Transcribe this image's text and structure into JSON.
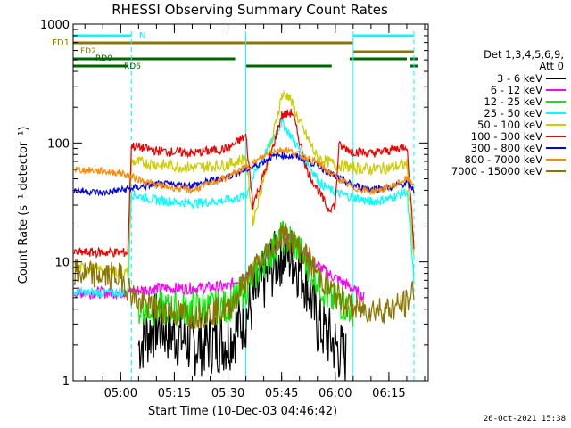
{
  "title": "RHESSI Observing Summary Count Rates",
  "xlabel": "Start Time (10-Dec-03 04:46:42)",
  "ylabel": "Count Rate (s⁻¹ detector⁻¹)",
  "timestamp": "26-Oct-2021 15:38",
  "legend": {
    "header_line1": "Det 1,3,4,5,6,9,",
    "header_line2": "Att 0",
    "entries": [
      {
        "label": "3 - 6 keV",
        "color": "#000000"
      },
      {
        "label": "6 - 12 keV",
        "color": "#ff00ff"
      },
      {
        "label": "12 - 25 keV",
        "color": "#00ee00"
      },
      {
        "label": "25 - 50 keV",
        "color": "#00ffff"
      },
      {
        "label": "50 - 100 keV",
        "color": "#cccc00"
      },
      {
        "label": "100 - 300 keV",
        "color": "#ee0000"
      },
      {
        "label": "300 - 800 keV",
        "color": "#0000ee"
      },
      {
        "label": "800 - 7000 keV",
        "color": "#ff8800"
      },
      {
        "label": "7000 - 15000 keV",
        "color": "#8b7500"
      }
    ]
  },
  "flags": {
    "N": {
      "label": "N",
      "color": "#00ffff"
    },
    "FD1": {
      "label": "FD1",
      "color": "#8b7500"
    },
    "FD2": {
      "label": "FD2",
      "color": "#8b7500"
    },
    "RD0": {
      "label": "RD0",
      "color": "#006400"
    },
    "RD6": {
      "label": "RD6",
      "color": "#006400"
    }
  },
  "chart_data": {
    "type": "line",
    "title": "RHESSI Observing Summary Count Rates",
    "xlabel": "Start Time (10-Dec-03 04:46:42)",
    "ylabel": "Count Rate (s⁻¹ detector⁻¹)",
    "yscale": "log",
    "ylim": [
      1,
      1000
    ],
    "xlim": [
      "04:46:42",
      "06:26:00"
    ],
    "yticks": [
      {
        "value": 1,
        "label": "1"
      },
      {
        "value": 10,
        "label": "10"
      },
      {
        "value": 100,
        "label": "100"
      },
      {
        "value": 1000,
        "label": "1000"
      }
    ],
    "xticks": [
      {
        "time": "05:00",
        "label": "05:00"
      },
      {
        "time": "05:15",
        "label": "05:15"
      },
      {
        "time": "05:30",
        "label": "05:30"
      },
      {
        "time": "05:45",
        "label": "05:45"
      },
      {
        "time": "06:00",
        "label": "06:00"
      },
      {
        "time": "06:15",
        "label": "06:15"
      }
    ],
    "night_boundaries": [
      "05:03",
      "06:22"
    ],
    "saa_boundaries": [
      "05:35",
      "06:05"
    ],
    "flag_intervals": {
      "N": [
        [
          "04:46:42",
          "05:03"
        ],
        [
          "06:05",
          "06:22"
        ]
      ],
      "FD1": [
        [
          "04:46:42",
          "06:05"
        ]
      ],
      "FD2": [
        [
          "06:05",
          "06:22"
        ]
      ],
      "RD0": [
        [
          "04:46:42",
          "05:32"
        ],
        [
          "06:04",
          "06:20"
        ],
        [
          "06:21",
          "06:23"
        ]
      ],
      "RD6": [
        [
          "04:46:42",
          "05:02"
        ],
        [
          "05:35",
          "05:59"
        ],
        [
          "06:21",
          "06:23"
        ]
      ]
    },
    "series": [
      {
        "name": "3 - 6 keV",
        "color": "#000000",
        "points": [
          [
            "05:05",
            2
          ],
          [
            "05:10",
            3
          ],
          [
            "05:20",
            2
          ],
          [
            "05:30",
            2.2
          ],
          [
            "05:35",
            3.5
          ],
          [
            "05:40",
            7
          ],
          [
            "05:45",
            12
          ],
          [
            "05:48",
            11
          ],
          [
            "05:52",
            7
          ],
          [
            "05:55",
            3
          ],
          [
            "06:00",
            2
          ],
          [
            "06:03",
            1.5
          ]
        ]
      },
      {
        "name": "6 - 12 keV",
        "color": "#ff00ff",
        "points": [
          [
            "04:47",
            5.5
          ],
          [
            "05:00",
            5.5
          ],
          [
            "05:10",
            6
          ],
          [
            "05:20",
            6
          ],
          [
            "05:30",
            6.2
          ],
          [
            "05:40",
            10
          ],
          [
            "05:45",
            15
          ],
          [
            "05:48",
            16
          ],
          [
            "05:52",
            11
          ],
          [
            "05:58",
            8
          ],
          [
            "06:03",
            6.5
          ],
          [
            "06:08",
            5
          ]
        ]
      },
      {
        "name": "12 - 25 keV",
        "color": "#00ee00",
        "points": [
          [
            "05:05",
            4
          ],
          [
            "05:15",
            4
          ],
          [
            "05:30",
            4.2
          ],
          [
            "05:35",
            6
          ],
          [
            "05:40",
            10
          ],
          [
            "05:45",
            16
          ],
          [
            "05:48",
            15
          ],
          [
            "05:52",
            10
          ],
          [
            "05:58",
            5
          ],
          [
            "06:05",
            4
          ]
        ]
      },
      {
        "name": "25 - 50 keV",
        "color": "#00ffff",
        "points": [
          [
            "04:47",
            5.5
          ],
          [
            "05:02",
            5.5
          ],
          [
            "05:03",
            37
          ],
          [
            "05:10",
            33
          ],
          [
            "05:20",
            31
          ],
          [
            "05:30",
            33
          ],
          [
            "05:35",
            36
          ],
          [
            "05:38",
            60
          ],
          [
            "05:42",
            100
          ],
          [
            "05:45",
            150
          ],
          [
            "05:48",
            110
          ],
          [
            "05:52",
            70
          ],
          [
            "05:56",
            45
          ],
          [
            "06:00",
            38
          ],
          [
            "06:05",
            35
          ],
          [
            "06:10",
            32
          ],
          [
            "06:15",
            34
          ],
          [
            "06:20",
            39
          ],
          [
            "06:22",
            7
          ]
        ]
      },
      {
        "name": "50 - 100 keV",
        "color": "#cccc00",
        "points": [
          [
            "04:47",
            9
          ],
          [
            "05:02",
            8
          ],
          [
            "05:03",
            70
          ],
          [
            "05:10",
            66
          ],
          [
            "05:20",
            62
          ],
          [
            "05:30",
            66
          ],
          [
            "05:35",
            75
          ],
          [
            "05:37",
            22
          ],
          [
            "05:40",
            50
          ],
          [
            "05:45",
            250
          ],
          [
            "05:47",
            250
          ],
          [
            "05:50",
            150
          ],
          [
            "05:55",
            75
          ],
          [
            "06:00",
            66
          ],
          [
            "06:05",
            62
          ],
          [
            "06:10",
            60
          ],
          [
            "06:15",
            62
          ],
          [
            "06:20",
            66
          ],
          [
            "06:22",
            10
          ]
        ]
      },
      {
        "name": "100 - 300 keV",
        "color": "#ee0000",
        "points": [
          [
            "04:47",
            12
          ],
          [
            "05:02",
            12
          ],
          [
            "05:03",
            95
          ],
          [
            "05:10",
            86
          ],
          [
            "05:20",
            82
          ],
          [
            "05:30",
            90
          ],
          [
            "05:35",
            115
          ],
          [
            "05:37",
            30
          ],
          [
            "05:42",
            80
          ],
          [
            "05:45",
            170
          ],
          [
            "05:48",
            180
          ],
          [
            "05:52",
            60
          ],
          [
            "05:58",
            28
          ],
          [
            "06:00",
            30
          ],
          [
            "06:01",
            95
          ],
          [
            "06:05",
            85
          ],
          [
            "06:10",
            82
          ],
          [
            "06:15",
            86
          ],
          [
            "06:20",
            95
          ],
          [
            "06:22",
            14
          ]
        ]
      },
      {
        "name": "300 - 800 keV",
        "color": "#0000ee",
        "points": [
          [
            "04:47",
            40
          ],
          [
            "04:55",
            38
          ],
          [
            "05:00",
            40
          ],
          [
            "05:10",
            45
          ],
          [
            "05:20",
            44
          ],
          [
            "05:30",
            52
          ],
          [
            "05:38",
            65
          ],
          [
            "05:42",
            76
          ],
          [
            "05:45",
            79
          ],
          [
            "05:50",
            76
          ],
          [
            "05:55",
            65
          ],
          [
            "06:00",
            52
          ],
          [
            "06:05",
            44
          ],
          [
            "06:10",
            41
          ],
          [
            "06:15",
            42
          ],
          [
            "06:20",
            46
          ],
          [
            "06:22",
            40
          ]
        ]
      },
      {
        "name": "800 - 7000 keV",
        "color": "#ff8800",
        "points": [
          [
            "04:47",
            60
          ],
          [
            "04:55",
            58
          ],
          [
            "05:00",
            56
          ],
          [
            "05:10",
            44
          ],
          [
            "05:20",
            40
          ],
          [
            "05:30",
            52
          ],
          [
            "05:38",
            70
          ],
          [
            "05:42",
            85
          ],
          [
            "05:46",
            88
          ],
          [
            "05:50",
            80
          ],
          [
            "05:55",
            68
          ],
          [
            "06:00",
            52
          ],
          [
            "06:05",
            42
          ],
          [
            "06:10",
            39
          ],
          [
            "06:15",
            42
          ],
          [
            "06:20",
            50
          ],
          [
            "06:22",
            45
          ]
        ]
      },
      {
        "name": "7000 - 15000 keV",
        "color": "#8b7500",
        "points": [
          [
            "04:47",
            8
          ],
          [
            "05:00",
            7.5
          ],
          [
            "05:05",
            4.5
          ],
          [
            "05:10",
            4
          ],
          [
            "05:20",
            3.5
          ],
          [
            "05:30",
            4
          ],
          [
            "05:35",
            7
          ],
          [
            "05:40",
            11
          ],
          [
            "05:45",
            17
          ],
          [
            "05:48",
            15
          ],
          [
            "05:52",
            11
          ],
          [
            "05:58",
            6
          ],
          [
            "06:05",
            4
          ],
          [
            "06:15",
            4
          ],
          [
            "06:20",
            4.5
          ],
          [
            "06:22",
            6
          ]
        ]
      }
    ]
  }
}
